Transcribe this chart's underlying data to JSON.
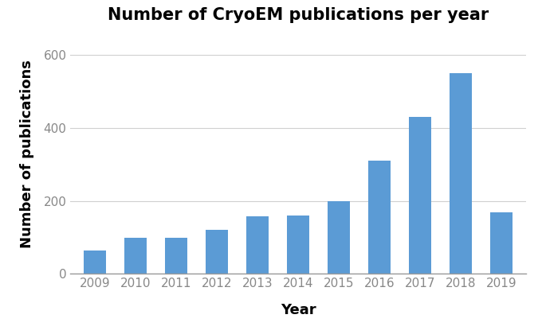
{
  "title": "Number of CryoEM publications per year",
  "xlabel": "Year",
  "ylabel": "Number of publications",
  "years": [
    2009,
    2010,
    2011,
    2012,
    2013,
    2014,
    2015,
    2016,
    2017,
    2018,
    2019
  ],
  "values": [
    65,
    100,
    98,
    120,
    158,
    160,
    200,
    310,
    430,
    550,
    170
  ],
  "bar_color": "#5b9bd5",
  "background_color": "#ffffff",
  "ylim": [
    0,
    660
  ],
  "yticks": [
    0,
    200,
    400,
    600
  ],
  "grid_color": "#d0d0d0",
  "title_fontsize": 15,
  "axis_label_fontsize": 13,
  "tick_fontsize": 11,
  "tick_color": "#888888",
  "spine_color": "#999999"
}
